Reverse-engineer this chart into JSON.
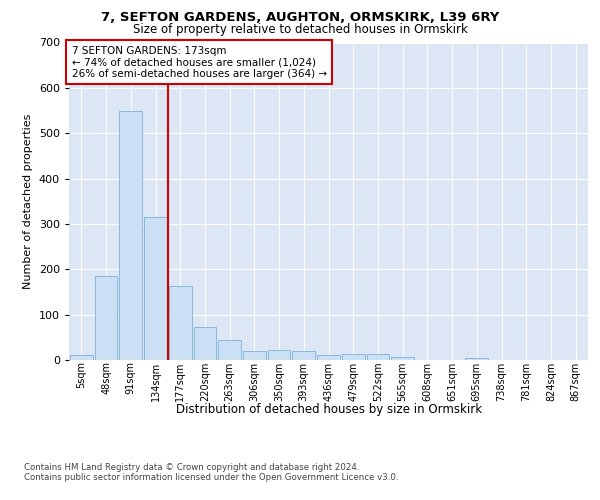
{
  "title1": "7, SEFTON GARDENS, AUGHTON, ORMSKIRK, L39 6RY",
  "title2": "Size of property relative to detached houses in Ormskirk",
  "xlabel": "Distribution of detached houses by size in Ormskirk",
  "ylabel": "Number of detached properties",
  "bar_labels": [
    "5sqm",
    "48sqm",
    "91sqm",
    "134sqm",
    "177sqm",
    "220sqm",
    "263sqm",
    "306sqm",
    "350sqm",
    "393sqm",
    "436sqm",
    "479sqm",
    "522sqm",
    "565sqm",
    "608sqm",
    "651sqm",
    "695sqm",
    "738sqm",
    "781sqm",
    "824sqm",
    "867sqm"
  ],
  "bar_values": [
    10,
    185,
    548,
    315,
    163,
    73,
    43,
    20,
    22,
    20,
    12,
    13,
    13,
    7,
    0,
    0,
    5,
    0,
    0,
    0,
    0
  ],
  "bar_color": "#cce0f5",
  "bar_edge_color": "#7ab0d8",
  "vline_color": "#cc0000",
  "vline_pos": 3.5,
  "annotation_text": "7 SEFTON GARDENS: 173sqm\n← 74% of detached houses are smaller (1,024)\n26% of semi-detached houses are larger (364) →",
  "annotation_box_color": "#ffffff",
  "annotation_box_edge": "#cc0000",
  "ylim": [
    0,
    700
  ],
  "yticks": [
    0,
    100,
    200,
    300,
    400,
    500,
    600,
    700
  ],
  "background_color": "#dce6f5",
  "footer1": "Contains HM Land Registry data © Crown copyright and database right 2024.",
  "footer2": "Contains public sector information licensed under the Open Government Licence v3.0."
}
